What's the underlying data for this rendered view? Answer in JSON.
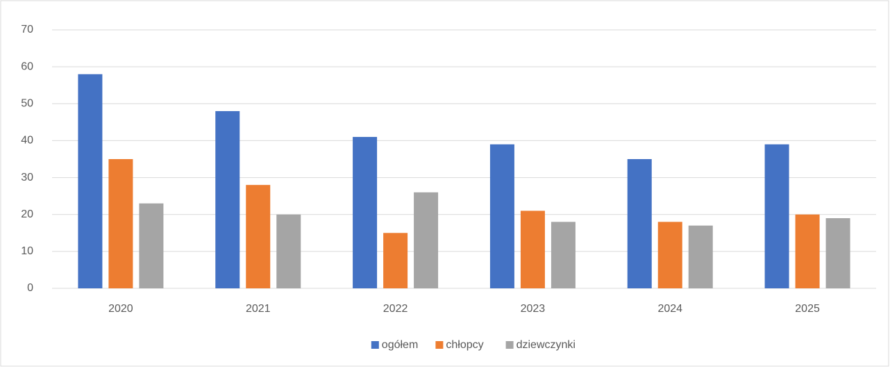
{
  "chart_data": {
    "type": "bar",
    "categories": [
      "2020",
      "2021",
      "2022",
      "2023",
      "2024",
      "2025"
    ],
    "series": [
      {
        "name": "ogółem",
        "color": "#4472c4",
        "values": [
          58,
          48,
          41,
          39,
          35,
          39
        ]
      },
      {
        "name": "chłopcy",
        "color": "#ed7d31",
        "values": [
          35,
          28,
          15,
          21,
          18,
          20
        ]
      },
      {
        "name": "dziewczynki",
        "color": "#a5a5a5",
        "values": [
          23,
          20,
          26,
          18,
          17,
          19
        ]
      }
    ],
    "ylim": [
      0,
      70
    ],
    "yticks": [
      0,
      10,
      20,
      30,
      40,
      50,
      60,
      70
    ],
    "grid": true,
    "legend": "bottom"
  }
}
